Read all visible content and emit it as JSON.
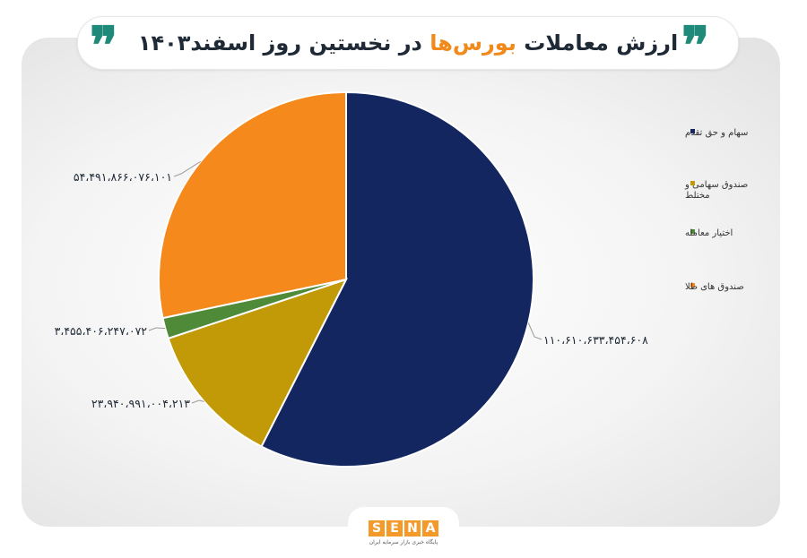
{
  "header": {
    "title_part1": "ارزش معاملات ",
    "title_highlight": "بورس‌ها",
    "title_part2": " در نخستین روز اسفند",
    "title_year": "۱۴۰۳",
    "quote_mark": "❞"
  },
  "logo": {
    "letters": [
      "S",
      "E",
      "N",
      "A"
    ],
    "subtitle": "پایگاه خبری بازار سرمایه ایران"
  },
  "chart_data": {
    "type": "pie",
    "title": "ارزش معاملات بورس‌ها در نخستین روز اسفند ۱۴۰۳",
    "start_angle_deg": 0,
    "direction": "clockwise",
    "legend_position": "right",
    "slices": [
      {
        "name": "سهام و حق تقدم",
        "value": 110610633454608,
        "label": "۱۱۰،۶۱۰،۶۳۳،۴۵۴،۶۰۸",
        "color": "#132660"
      },
      {
        "name": "صندوق سهامی و مختلط",
        "name_lines": [
          "صندوق سهامی و",
          "مختلط"
        ],
        "value": 23940991004213,
        "label": "۲۳،۹۴۰،۹۹۱،۰۰۴،۲۱۳",
        "color": "#c29a07"
      },
      {
        "name": "اختیار معامله",
        "value": 3455406247072,
        "label": "۳،۴۵۵،۴۰۶،۲۴۷،۰۷۲",
        "color": "#4e8a38"
      },
      {
        "name": "صندوق های طلا",
        "value": 54491866076101,
        "label": "۵۴،۴۹۱،۸۶۶،۰۷۶،۱۰۱",
        "color": "#f5891c"
      }
    ]
  }
}
